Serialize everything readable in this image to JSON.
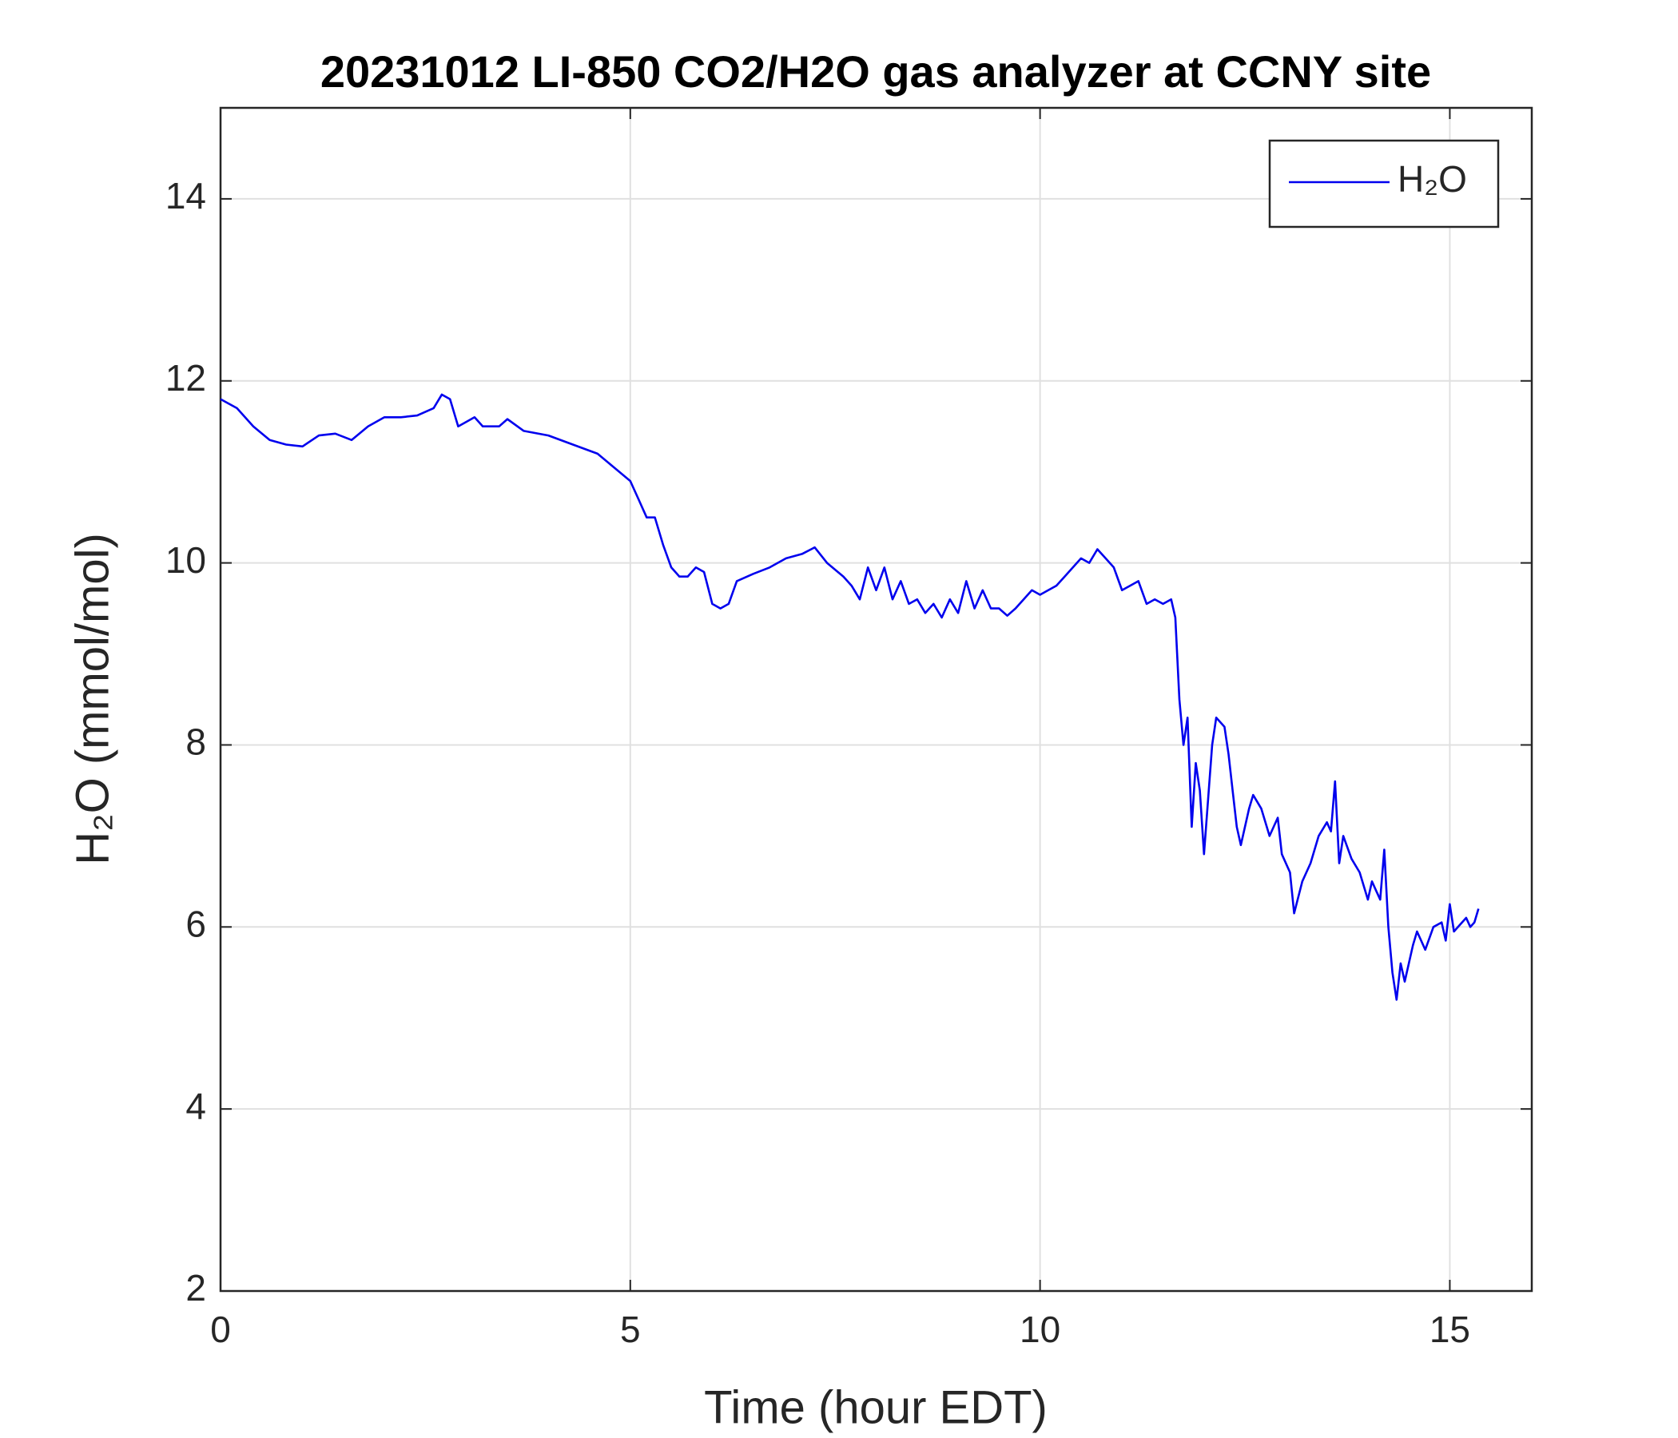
{
  "chart_data": {
    "type": "line",
    "title": "20231012 LI-850 CO2/H2O gas analyzer at CCNY site",
    "x_label": "Time (hour EDT)",
    "y_label": "H₂O (mmol/mol)",
    "xlim": [
      0,
      16
    ],
    "xticks": [
      0,
      5,
      10,
      15
    ],
    "ylim": [
      2,
      15
    ],
    "yticks": [
      2,
      4,
      6,
      8,
      10,
      12,
      14
    ],
    "grid": true,
    "legend": "upper right",
    "x": [
      0,
      0.2,
      0.4,
      0.6,
      0.8,
      1.0,
      1.2,
      1.4,
      1.6,
      1.8,
      2.0,
      2.2,
      2.4,
      2.6,
      2.7,
      2.8,
      2.9,
      3.0,
      3.1,
      3.2,
      3.4,
      3.5,
      3.7,
      4.0,
      4.3,
      4.6,
      4.8,
      5.0,
      5.1,
      5.2,
      5.3,
      5.4,
      5.5,
      5.6,
      5.7,
      5.8,
      5.9,
      6.0,
      6.1,
      6.2,
      6.3,
      6.5,
      6.7,
      6.9,
      7.1,
      7.25,
      7.4,
      7.6,
      7.7,
      7.8,
      7.9,
      8.0,
      8.1,
      8.2,
      8.3,
      8.4,
      8.5,
      8.6,
      8.7,
      8.8,
      8.9,
      9.0,
      9.1,
      9.2,
      9.3,
      9.4,
      9.5,
      9.6,
      9.7,
      9.8,
      9.9,
      10.0,
      10.1,
      10.2,
      10.3,
      10.4,
      10.5,
      10.6,
      10.7,
      10.8,
      10.9,
      11.0,
      11.1,
      11.2,
      11.3,
      11.4,
      11.5,
      11.6,
      11.65,
      11.7,
      11.75,
      11.8,
      11.85,
      11.9,
      11.95,
      12.0,
      12.05,
      12.1,
      12.15,
      12.25,
      12.3,
      12.35,
      12.4,
      12.45,
      12.55,
      12.6,
      12.7,
      12.8,
      12.9,
      12.95,
      13.05,
      13.1,
      13.2,
      13.3,
      13.4,
      13.5,
      13.55,
      13.6,
      13.65,
      13.7,
      13.8,
      13.9,
      14.0,
      14.05,
      14.1,
      14.15,
      14.2,
      14.25,
      14.3,
      14.35,
      14.4,
      14.45,
      14.55,
      14.6,
      14.7,
      14.8,
      14.9,
      14.95,
      15.0,
      15.05,
      15.1,
      15.2,
      15.25,
      15.3,
      15.35
    ],
    "series": [
      {
        "name": "H₂O",
        "color": "#0000ee",
        "values": [
          11.8,
          11.7,
          11.5,
          11.35,
          11.3,
          11.28,
          11.4,
          11.42,
          11.35,
          11.5,
          11.6,
          11.6,
          11.62,
          11.7,
          11.85,
          11.8,
          11.5,
          11.55,
          11.6,
          11.5,
          11.5,
          11.58,
          11.45,
          11.4,
          11.3,
          11.2,
          11.05,
          10.9,
          10.7,
          10.5,
          10.5,
          10.2,
          9.95,
          9.85,
          9.85,
          9.95,
          9.9,
          9.55,
          9.5,
          9.55,
          9.8,
          9.88,
          9.95,
          10.05,
          10.1,
          10.17,
          10.0,
          9.85,
          9.75,
          9.6,
          9.95,
          9.7,
          9.95,
          9.6,
          9.8,
          9.55,
          9.6,
          9.45,
          9.55,
          9.4,
          9.6,
          9.45,
          9.8,
          9.5,
          9.7,
          9.5,
          9.5,
          9.42,
          9.5,
          9.6,
          9.7,
          9.65,
          9.7,
          9.75,
          9.85,
          9.95,
          10.05,
          10.0,
          10.15,
          10.05,
          9.95,
          9.7,
          9.75,
          9.8,
          9.55,
          9.6,
          9.55,
          9.6,
          9.4,
          8.5,
          8.0,
          8.3,
          7.1,
          7.8,
          7.5,
          6.8,
          7.4,
          8.0,
          8.3,
          8.2,
          7.9,
          7.5,
          7.1,
          6.9,
          7.3,
          7.45,
          7.3,
          7.0,
          7.2,
          6.8,
          6.6,
          6.15,
          6.5,
          6.7,
          7.0,
          7.15,
          7.05,
          7.6,
          6.7,
          7.0,
          6.75,
          6.6,
          6.3,
          6.5,
          6.4,
          6.3,
          6.85,
          6.0,
          5.5,
          5.2,
          5.6,
          5.4,
          5.8,
          5.95,
          5.75,
          6.0,
          6.05,
          5.85,
          6.25,
          5.95,
          6.0,
          6.1,
          6.0,
          6.05,
          6.2
        ]
      }
    ]
  }
}
